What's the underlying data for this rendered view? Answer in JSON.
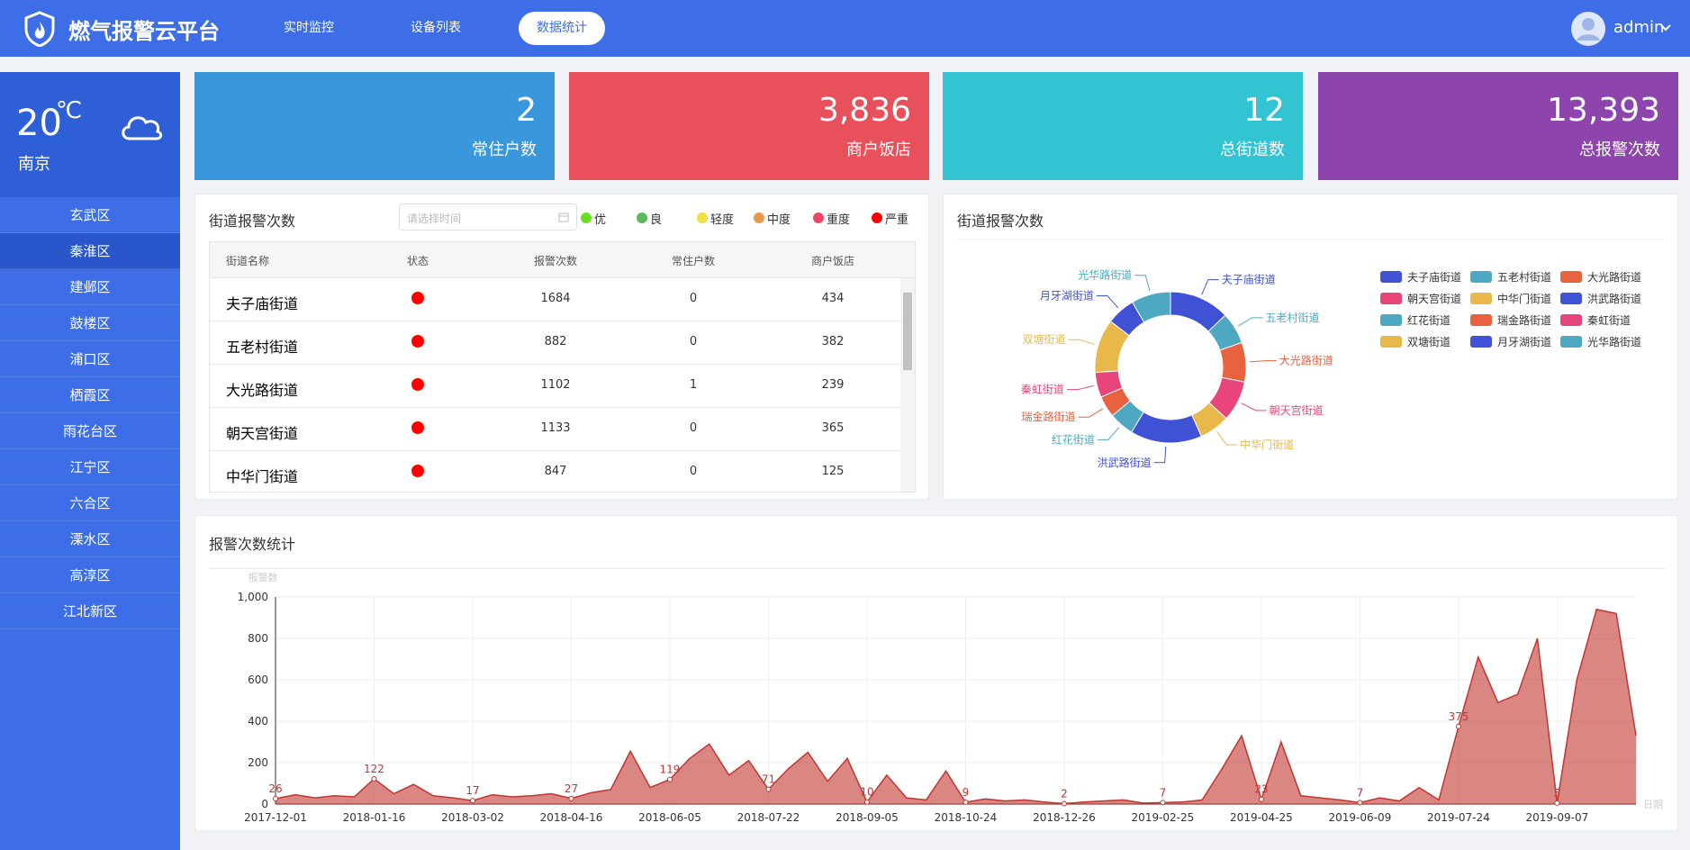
{
  "header": {
    "title": "燃气报警云平台",
    "nav": [
      "实时监控",
      "设备列表",
      "数据统计"
    ],
    "user": "admin"
  },
  "weather": {
    "temperature": "20",
    "unit": "℃",
    "city": "南京"
  },
  "sidebar": {
    "items": [
      "玄武区",
      "秦淮区",
      "建邺区",
      "鼓楼区",
      "浦口区",
      "栖霞区",
      "雨花台区",
      "江宁区",
      "六合区",
      "溧水区",
      "高淳区",
      "江北新区"
    ]
  },
  "stats": [
    {
      "value": "2",
      "label": "常住户数",
      "color": "#3a97dc"
    },
    {
      "value": "3,836",
      "label": "商户饭店",
      "color": "#e8505b"
    },
    {
      "value": "12",
      "label": "总街道数",
      "color": "#33c4d4"
    },
    {
      "value": "13,393",
      "label": "总报警次数",
      "color": "#8e44ad"
    }
  ],
  "table_panel": {
    "title": "街道报警次数",
    "date_placeholder": "请选择时间",
    "status_legend": [
      {
        "label": "优",
        "color": "#66e01f"
      },
      {
        "label": "良",
        "color": "#5cb85c"
      },
      {
        "label": "轻度",
        "color": "#f0e040"
      },
      {
        "label": "中度",
        "color": "#e89a4a"
      },
      {
        "label": "重度",
        "color": "#ee4466"
      },
      {
        "label": "严重",
        "color": "#ff0000"
      }
    ],
    "header": [
      "街道名称",
      "状态",
      "报警次数",
      "常住户数",
      "商户饭店"
    ],
    "rows": [
      [
        "夫子庙街道",
        "1684",
        "0",
        "434"
      ],
      [
        "五老村街道",
        "882",
        "0",
        "382"
      ],
      [
        "大光路街道",
        "1102",
        "1",
        "239"
      ],
      [
        "朝天宫街道",
        "1133",
        "0",
        "365"
      ],
      [
        "中华门街道",
        "847",
        "0",
        "125"
      ]
    ]
  },
  "chart_data": [
    {
      "type": "pie",
      "donut": true,
      "title": "街道报警次数",
      "categories": [
        "夫子庙街道",
        "五老村街道",
        "大光路街道",
        "朝天宫街道",
        "中华门街道",
        "洪武路街道",
        "红花街道",
        "瑞金路街道",
        "秦虹街道",
        "双塘街道",
        "月牙湖街道",
        "光华路街道"
      ],
      "values": [
        1684,
        882,
        1102,
        1133,
        847,
        2000,
        700,
        600,
        700,
        1500,
        800,
        1100
      ],
      "colors": [
        "#3f51d4",
        "#4fa8c2",
        "#e8623f",
        "#e8457a",
        "#e8b84a",
        "#3f51d4",
        "#4fa8c2",
        "#e8623f",
        "#e8457a",
        "#e8b84a",
        "#3f51d4",
        "#4fa8c2"
      ]
    },
    {
      "type": "area",
      "title": "报警次数统计",
      "y_label": "报警数",
      "x_label": "日期",
      "color": "#c23531",
      "grid": true,
      "categories": [
        "2017-12-01",
        null,
        null,
        null,
        null,
        "2018-01-16",
        null,
        null,
        null,
        null,
        "2018-03-02",
        null,
        null,
        null,
        null,
        "2018-04-16",
        null,
        null,
        null,
        null,
        "2018-06-05",
        null,
        null,
        null,
        null,
        "2018-07-22",
        null,
        null,
        null,
        null,
        "2018-09-05",
        null,
        null,
        null,
        null,
        "2018-10-24",
        null,
        null,
        null,
        null,
        "2018-12-26",
        null,
        null,
        null,
        null,
        "2019-02-25",
        null,
        null,
        null,
        null,
        "2019-04-25",
        null,
        null,
        null,
        null,
        "2019-06-09",
        null,
        null,
        null,
        null,
        "2019-07-24",
        null,
        null,
        null,
        null,
        "2019-09-07",
        null,
        null,
        null,
        null
      ],
      "values": [
        26,
        45,
        30,
        40,
        35,
        122,
        50,
        95,
        40,
        30,
        17,
        45,
        35,
        40,
        50,
        27,
        55,
        70,
        255,
        80,
        119,
        220,
        290,
        140,
        210,
        71,
        170,
        250,
        110,
        220,
        10,
        140,
        30,
        20,
        160,
        9,
        25,
        15,
        20,
        10,
        2,
        10,
        15,
        20,
        5,
        7,
        10,
        20,
        170,
        330,
        23,
        300,
        40,
        30,
        20,
        7,
        30,
        15,
        80,
        20,
        375,
        710,
        490,
        530,
        800,
        5,
        600,
        940,
        920,
        330
      ],
      "value_labels": [
        "26",
        null,
        null,
        null,
        null,
        "122",
        null,
        null,
        null,
        null,
        "17",
        null,
        null,
        null,
        null,
        "27",
        null,
        null,
        null,
        null,
        "119",
        null,
        null,
        null,
        null,
        "71",
        null,
        null,
        null,
        null,
        "10",
        null,
        null,
        null,
        null,
        "9",
        null,
        null,
        null,
        null,
        "2",
        null,
        null,
        null,
        null,
        "7",
        null,
        null,
        null,
        null,
        "23",
        null,
        null,
        null,
        null,
        "7",
        null,
        null,
        null,
        null,
        "375",
        null,
        null,
        null,
        null,
        "5",
        null,
        null,
        null,
        null
      ],
      "ylim": [
        0,
        1000
      ],
      "yticks": [
        0,
        200,
        400,
        600,
        800,
        {
          "value": 1000,
          "label": "1,000"
        }
      ]
    }
  ]
}
